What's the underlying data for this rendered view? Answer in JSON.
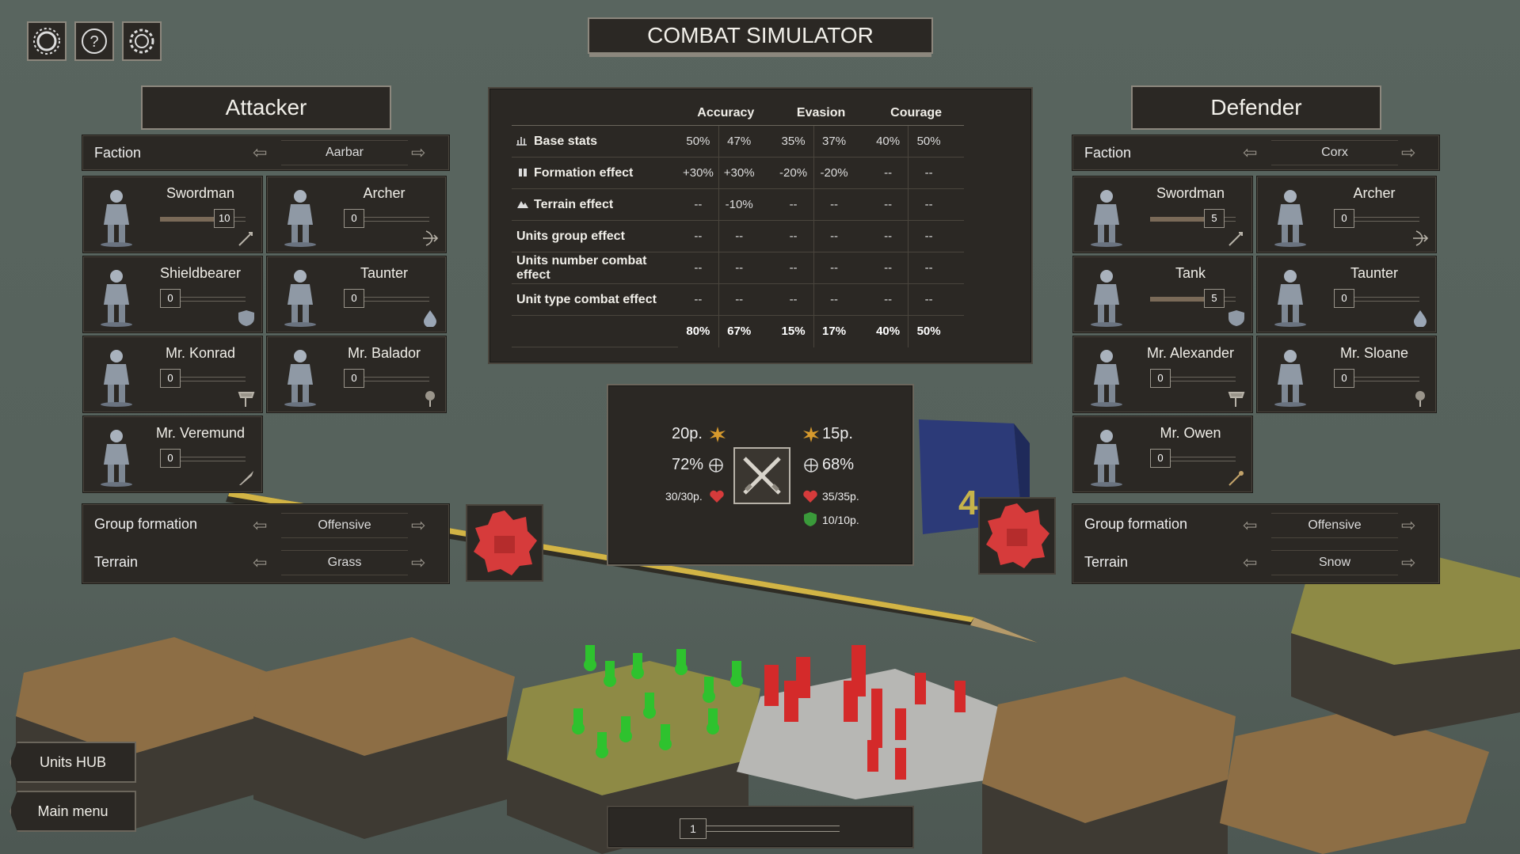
{
  "title": "COMBAT SIMULATOR",
  "top_icons": [
    "sun-settings-icon",
    "help-icon",
    "gear-icon"
  ],
  "attacker": {
    "header": "Attacker",
    "faction_label": "Faction",
    "faction": "Aarbar",
    "units": [
      {
        "name": "Swordman",
        "count": "10",
        "fill": 0.75,
        "type_icon": "sword-icon"
      },
      {
        "name": "Archer",
        "count": "0",
        "fill": 0,
        "type_icon": "bow-icon"
      },
      {
        "name": "Shieldbearer",
        "count": "0",
        "fill": 0,
        "type_icon": "shield-icon"
      },
      {
        "name": "Taunter",
        "count": "0",
        "fill": 0,
        "type_icon": "drop-icon"
      },
      {
        "name": "Mr. Konrad",
        "count": "0",
        "fill": 0,
        "type_icon": "axe-icon"
      },
      {
        "name": "Mr. Balador",
        "count": "0",
        "fill": 0,
        "type_icon": "mace-icon"
      },
      {
        "name": "Mr. Veremund",
        "count": "0",
        "fill": 0,
        "type_icon": "dagger-icon"
      }
    ],
    "formation_label": "Group formation",
    "formation": "Offensive",
    "terrain_label": "Terrain",
    "terrain": "Grass"
  },
  "defender": {
    "header": "Defender",
    "faction_label": "Faction",
    "faction": "Corx",
    "units": [
      {
        "name": "Swordman",
        "count": "5",
        "fill": 0.75,
        "type_icon": "sword-icon"
      },
      {
        "name": "Archer",
        "count": "0",
        "fill": 0,
        "type_icon": "bow-icon"
      },
      {
        "name": "Tank",
        "count": "5",
        "fill": 0.75,
        "type_icon": "shield-icon"
      },
      {
        "name": "Taunter",
        "count": "0",
        "fill": 0,
        "type_icon": "drop-icon"
      },
      {
        "name": "Mr. Alexander",
        "count": "0",
        "fill": 0,
        "type_icon": "axe-icon"
      },
      {
        "name": "Mr. Sloane",
        "count": "0",
        "fill": 0,
        "type_icon": "mace-icon"
      },
      {
        "name": "Mr. Owen",
        "count": "0",
        "fill": 0,
        "type_icon": "staff-icon"
      }
    ],
    "formation_label": "Group formation",
    "formation": "Offensive",
    "terrain_label": "Terrain",
    "terrain": "Snow"
  },
  "stats": {
    "headers": [
      "Accuracy",
      "Evasion",
      "Courage"
    ],
    "rows": [
      {
        "label": "Base stats",
        "icon": "bar-chart-icon",
        "values": [
          "50%",
          "47%",
          "35%",
          "37%",
          "40%",
          "50%"
        ],
        "cls": [
          "",
          "",
          "",
          "",
          "",
          ""
        ]
      },
      {
        "label": "Formation effect",
        "icon": "formation-icon",
        "values": [
          "+30%",
          "+30%",
          "-20%",
          "-20%",
          "--",
          "--"
        ],
        "cls": [
          "pos",
          "pos",
          "neg",
          "neg",
          "",
          ""
        ]
      },
      {
        "label": "Terrain effect",
        "icon": "terrain-icon",
        "values": [
          "--",
          "-10%",
          "--",
          "--",
          "--",
          "--"
        ],
        "cls": [
          "",
          "neg",
          "",
          "",
          "",
          ""
        ]
      },
      {
        "label": "Units group effect",
        "icon": "",
        "values": [
          "--",
          "--",
          "--",
          "--",
          "--",
          "--"
        ],
        "cls": [
          "",
          "",
          "",
          "",
          "",
          ""
        ]
      },
      {
        "label": "Units number combat effect",
        "icon": "",
        "values": [
          "--",
          "--",
          "--",
          "--",
          "--",
          "--"
        ],
        "cls": [
          "",
          "",
          "",
          "",
          "",
          ""
        ]
      },
      {
        "label": "Unit type combat effect",
        "icon": "",
        "values": [
          "--",
          "--",
          "--",
          "--",
          "--",
          "--"
        ],
        "cls": [
          "",
          "",
          "",
          "",
          "",
          ""
        ]
      }
    ],
    "totals": [
      "80%",
      "67%",
      "15%",
      "17%",
      "40%",
      "50%"
    ]
  },
  "combat": {
    "left_damage": "20p.",
    "left_accuracy": "72%",
    "left_hp": "30/30p.",
    "right_damage": "15p.",
    "right_accuracy": "68%",
    "right_hp": "35/35p.",
    "right_armor": "10/10p."
  },
  "round": {
    "value": "1",
    "fill": 0.05
  },
  "nav": {
    "units_hub": "Units HUB",
    "main_menu": "Main menu"
  },
  "colors": {
    "panel": "#2b2824",
    "border": "#4a453d",
    "accent_red": "#d63b3b",
    "positive": "#5ab35a",
    "negative": "#c95a4d",
    "attacker_army": "#2ec22e",
    "defender_army": "#d42a2a"
  }
}
